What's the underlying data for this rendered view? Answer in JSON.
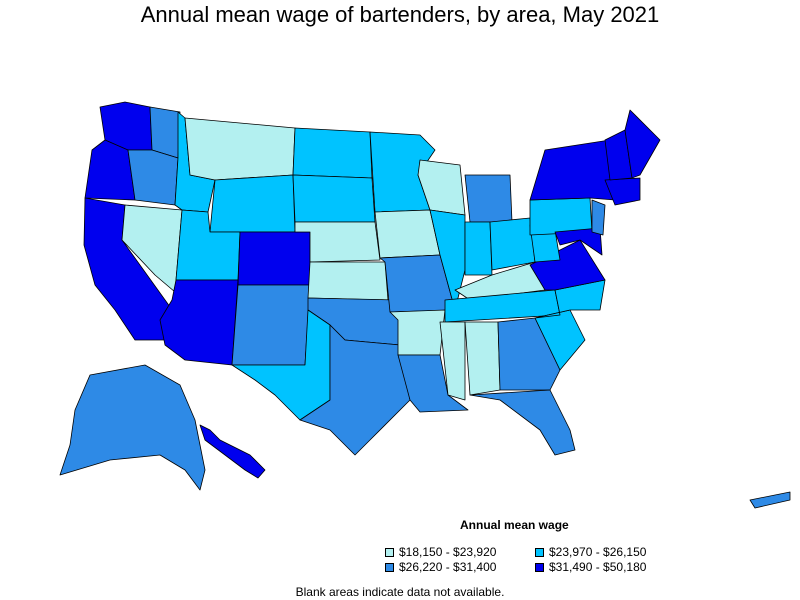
{
  "title": "Annual mean wage of bartenders, by area, May 2021",
  "legend": {
    "title": "Annual mean wage",
    "items": [
      {
        "label": "$18,150 - $23,920",
        "color": "#b3f0f0"
      },
      {
        "label": "$23,970 - $26,150",
        "color": "#00c3ff"
      },
      {
        "label": "$26,220 - $31,400",
        "color": "#2e8ae6"
      },
      {
        "label": "$31,490 - $50,180",
        "color": "#0000ee"
      }
    ]
  },
  "footnote": "Blank areas indicate data not available.",
  "regions": [
    {
      "name": "washington-west",
      "level": 3
    },
    {
      "name": "washington-east",
      "level": 2
    },
    {
      "name": "oregon-west",
      "level": 3
    },
    {
      "name": "oregon-east",
      "level": 2
    },
    {
      "name": "california",
      "level": 3
    },
    {
      "name": "nevada",
      "level": 0
    },
    {
      "name": "idaho",
      "level": 1
    },
    {
      "name": "montana",
      "level": 0
    },
    {
      "name": "wyoming",
      "level": 1
    },
    {
      "name": "utah",
      "level": 1
    },
    {
      "name": "colorado",
      "level": 3
    },
    {
      "name": "arizona",
      "level": 3
    },
    {
      "name": "new-mexico",
      "level": 2
    },
    {
      "name": "north-dakota",
      "level": 1
    },
    {
      "name": "south-dakota",
      "level": 1
    },
    {
      "name": "nebraska",
      "level": 0
    },
    {
      "name": "kansas",
      "level": 0
    },
    {
      "name": "oklahoma",
      "level": 2
    },
    {
      "name": "texas-west",
      "level": 1
    },
    {
      "name": "texas-east",
      "level": 2
    },
    {
      "name": "minnesota",
      "level": 1
    },
    {
      "name": "iowa",
      "level": 0
    },
    {
      "name": "missouri",
      "level": 2
    },
    {
      "name": "arkansas",
      "level": 0
    },
    {
      "name": "louisiana",
      "level": 2
    },
    {
      "name": "wisconsin",
      "level": 0
    },
    {
      "name": "illinois",
      "level": 1
    },
    {
      "name": "michigan",
      "level": 2
    },
    {
      "name": "indiana",
      "level": 1
    },
    {
      "name": "ohio",
      "level": 1
    },
    {
      "name": "kentucky",
      "level": 0
    },
    {
      "name": "tennessee",
      "level": 1
    },
    {
      "name": "mississippi",
      "level": 0
    },
    {
      "name": "alabama",
      "level": 0
    },
    {
      "name": "georgia",
      "level": 2
    },
    {
      "name": "florida",
      "level": 2
    },
    {
      "name": "south-carolina",
      "level": 1
    },
    {
      "name": "north-carolina",
      "level": 1
    },
    {
      "name": "virginia",
      "level": 3
    },
    {
      "name": "west-virginia",
      "level": 1
    },
    {
      "name": "pennsylvania",
      "level": 1
    },
    {
      "name": "new-york",
      "level": 3
    },
    {
      "name": "maryland-delaware",
      "level": 3
    },
    {
      "name": "new-jersey",
      "level": 2
    },
    {
      "name": "new-england-south",
      "level": 3
    },
    {
      "name": "vermont-new-hampshire",
      "level": 3
    },
    {
      "name": "maine",
      "level": 3
    },
    {
      "name": "alaska",
      "level": 2
    },
    {
      "name": "hawaii",
      "level": 3
    },
    {
      "name": "puerto-rico",
      "level": 2
    }
  ]
}
